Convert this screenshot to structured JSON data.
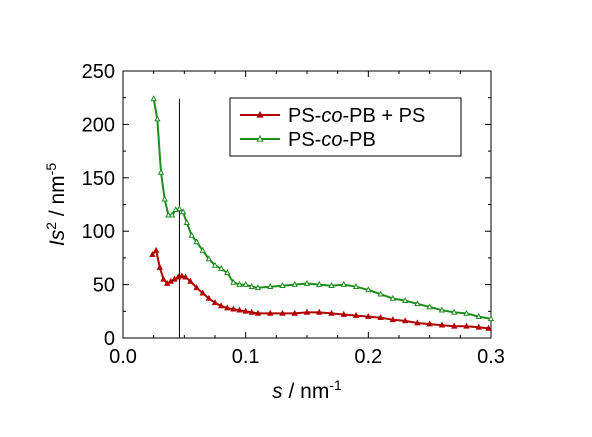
{
  "chart_data": {
    "type": "line",
    "title": "",
    "xlabel": {
      "italic": "s",
      "rest": " / nm",
      "sup": "-1"
    },
    "ylabel": {
      "italic": "Is",
      "sup1": "2",
      "rest": " / nm",
      "sup2": "-5"
    },
    "xlim": [
      0.0,
      0.3
    ],
    "ylim": [
      0,
      250
    ],
    "xticks": [
      0.0,
      0.1,
      0.2,
      0.3
    ],
    "xtick_labels": [
      "0.0",
      "0.1",
      "0.2",
      "0.3"
    ],
    "yticks": [
      0,
      50,
      100,
      150,
      200,
      250
    ],
    "ytick_labels": [
      "0",
      "50",
      "100",
      "150",
      "200",
      "250"
    ],
    "grid": false,
    "legend_position": "top-right",
    "vline_x": 0.046,
    "series": [
      {
        "name": "PS-co-PB + PS",
        "name_parts": [
          "PS-",
          "co",
          "-PB + PS"
        ],
        "color": "#b00000",
        "marker": "filled-triangle",
        "x": [
          0.024,
          0.027,
          0.03,
          0.033,
          0.036,
          0.039,
          0.042,
          0.045,
          0.048,
          0.051,
          0.055,
          0.06,
          0.065,
          0.07,
          0.075,
          0.08,
          0.085,
          0.09,
          0.095,
          0.1,
          0.105,
          0.11,
          0.12,
          0.13,
          0.14,
          0.15,
          0.16,
          0.17,
          0.18,
          0.19,
          0.2,
          0.21,
          0.22,
          0.23,
          0.24,
          0.25,
          0.26,
          0.27,
          0.28,
          0.29,
          0.298
        ],
        "y": [
          78,
          82,
          66,
          55,
          51,
          53,
          55,
          57,
          58,
          57,
          53,
          47,
          42,
          37,
          33,
          30,
          28,
          27,
          26,
          25,
          24,
          23,
          23,
          23,
          23,
          24,
          24,
          23,
          22,
          21,
          20,
          19,
          17,
          16,
          14,
          13,
          12,
          11,
          11,
          10,
          9
        ]
      },
      {
        "name": "PS-co-PB",
        "name_parts": [
          "PS-",
          "co",
          "-PB"
        ],
        "color": "#1e8c1e",
        "marker": "open-triangle",
        "x": [
          0.025,
          0.028,
          0.031,
          0.034,
          0.037,
          0.04,
          0.043,
          0.046,
          0.049,
          0.052,
          0.056,
          0.06,
          0.065,
          0.07,
          0.075,
          0.08,
          0.085,
          0.09,
          0.095,
          0.1,
          0.105,
          0.11,
          0.12,
          0.13,
          0.14,
          0.15,
          0.16,
          0.17,
          0.18,
          0.19,
          0.2,
          0.21,
          0.22,
          0.23,
          0.24,
          0.25,
          0.26,
          0.27,
          0.28,
          0.29,
          0.3
        ],
        "y": [
          224,
          205,
          155,
          130,
          115,
          115,
          120,
          121,
          118,
          108,
          96,
          90,
          82,
          74,
          68,
          65,
          61,
          52,
          50,
          50,
          48,
          47,
          48,
          49,
          50,
          51,
          50,
          49,
          50,
          48,
          45,
          41,
          37,
          35,
          32,
          29,
          26,
          24,
          23,
          20,
          18
        ]
      }
    ]
  }
}
